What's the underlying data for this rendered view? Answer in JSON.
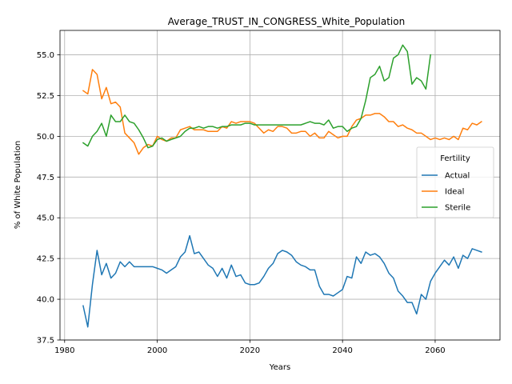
{
  "chart_data": {
    "type": "line",
    "title": "Average_TRUST_IN_CONGRESS_White_Population",
    "xlabel": "Years",
    "ylabel": "% of White Population",
    "xlim": [
      1979,
      2074
    ],
    "ylim": [
      37.5,
      56.5
    ],
    "xticks": [
      1980,
      2000,
      2020,
      2040,
      2060
    ],
    "yticks": [
      37.5,
      40.0,
      42.5,
      45.0,
      47.5,
      50.0,
      52.5,
      55.0
    ],
    "ytick_labels": [
      "37.5",
      "40.0",
      "42.5",
      "45.0",
      "47.5",
      "50.0",
      "52.5",
      "55.0"
    ],
    "grid": true,
    "legend": {
      "title": "Fertility",
      "placement": "center-right"
    },
    "series": [
      {
        "name": "Actual",
        "color": "#1f77b4",
        "x": [
          1984,
          1985,
          1986,
          1987,
          1988,
          1989,
          1990,
          1991,
          1992,
          1993,
          1994,
          1995,
          1996,
          1997,
          1998,
          1999,
          2000,
          2001,
          2002,
          2003,
          2004,
          2005,
          2006,
          2007,
          2008,
          2009,
          2010,
          2011,
          2012,
          2013,
          2014,
          2015,
          2016,
          2017,
          2018,
          2019,
          2020,
          2021,
          2022,
          2023,
          2024,
          2025,
          2026,
          2027,
          2028,
          2029,
          2030,
          2031,
          2032,
          2033,
          2034,
          2035,
          2036,
          2037,
          2038,
          2039,
          2040,
          2041,
          2042,
          2043,
          2044,
          2045,
          2046,
          2047,
          2048,
          2049,
          2050,
          2051,
          2052,
          2053,
          2054,
          2055,
          2056,
          2057,
          2058,
          2059,
          2060,
          2061,
          2062,
          2063,
          2064,
          2065,
          2066,
          2067,
          2068,
          2069,
          2070
        ],
        "values": [
          39.6,
          38.3,
          40.9,
          43.0,
          41.5,
          42.2,
          41.3,
          41.6,
          42.3,
          42.0,
          42.3,
          42.0,
          42.0,
          42.0,
          42.0,
          42.0,
          41.9,
          41.8,
          41.6,
          41.8,
          42.0,
          42.6,
          42.9,
          43.9,
          42.8,
          42.9,
          42.5,
          42.1,
          41.9,
          41.4,
          41.9,
          41.3,
          42.1,
          41.4,
          41.5,
          41.0,
          40.9,
          40.9,
          41.0,
          41.4,
          41.9,
          42.2,
          42.8,
          43.0,
          42.9,
          42.7,
          42.3,
          42.1,
          42.0,
          41.8,
          41.8,
          40.8,
          40.3,
          40.3,
          40.2,
          40.4,
          40.6,
          41.4,
          41.3,
          42.6,
          42.2,
          42.9,
          42.7,
          42.8,
          42.6,
          42.2,
          41.6,
          41.3,
          40.5,
          40.2,
          39.8,
          39.8,
          39.1,
          40.3,
          40.0,
          41.1,
          41.6,
          42.0,
          42.4,
          42.1,
          42.6,
          41.9,
          42.7,
          42.5,
          43.1,
          43.0,
          42.9
        ]
      },
      {
        "name": "Ideal",
        "color": "#ff7f0e",
        "x": [
          1984,
          1985,
          1986,
          1987,
          1988,
          1989,
          1990,
          1991,
          1992,
          1993,
          1994,
          1995,
          1996,
          1997,
          1998,
          1999,
          2000,
          2001,
          2002,
          2003,
          2004,
          2005,
          2006,
          2007,
          2008,
          2009,
          2010,
          2011,
          2012,
          2013,
          2014,
          2015,
          2016,
          2017,
          2018,
          2019,
          2020,
          2021,
          2022,
          2023,
          2024,
          2025,
          2026,
          2027,
          2028,
          2029,
          2030,
          2031,
          2032,
          2033,
          2034,
          2035,
          2036,
          2037,
          2038,
          2039,
          2040,
          2041,
          2042,
          2043,
          2044,
          2045,
          2046,
          2047,
          2048,
          2049,
          2050,
          2051,
          2052,
          2053,
          2054,
          2055,
          2056,
          2057,
          2058,
          2059,
          2060,
          2061,
          2062,
          2063,
          2064,
          2065,
          2066,
          2067,
          2068,
          2069,
          2070
        ],
        "values": [
          52.8,
          52.6,
          54.1,
          53.8,
          52.3,
          53.0,
          52.0,
          52.1,
          51.8,
          50.2,
          49.9,
          49.6,
          48.9,
          49.3,
          49.5,
          49.4,
          50.0,
          49.8,
          49.7,
          49.9,
          49.9,
          50.4,
          50.5,
          50.6,
          50.4,
          50.4,
          50.4,
          50.3,
          50.3,
          50.3,
          50.6,
          50.5,
          50.9,
          50.8,
          50.9,
          50.9,
          50.9,
          50.8,
          50.5,
          50.2,
          50.4,
          50.3,
          50.6,
          50.6,
          50.5,
          50.2,
          50.2,
          50.3,
          50.3,
          50.0,
          50.2,
          49.9,
          49.9,
          50.3,
          50.1,
          49.9,
          50.0,
          50.0,
          50.6,
          51.0,
          51.1,
          51.3,
          51.3,
          51.4,
          51.4,
          51.2,
          50.9,
          50.9,
          50.6,
          50.7,
          50.5,
          50.4,
          50.2,
          50.2,
          50.0,
          49.8,
          49.9,
          49.8,
          49.9,
          49.8,
          50.0,
          49.8,
          50.5,
          50.4,
          50.8,
          50.7,
          50.9
        ]
      },
      {
        "name": "Sterile",
        "color": "#2ca02c",
        "x": [
          1984,
          1985,
          1986,
          1987,
          1988,
          1989,
          1990,
          1991,
          1992,
          1993,
          1994,
          1995,
          1996,
          1997,
          1998,
          1999,
          2000,
          2001,
          2002,
          2003,
          2004,
          2005,
          2006,
          2007,
          2008,
          2009,
          2010,
          2011,
          2012,
          2013,
          2014,
          2015,
          2016,
          2017,
          2018,
          2019,
          2020,
          2021,
          2022,
          2023,
          2024,
          2025,
          2026,
          2027,
          2028,
          2029,
          2030,
          2031,
          2032,
          2033,
          2034,
          2035,
          2036,
          2037,
          2038,
          2039,
          2040,
          2041,
          2042,
          2043,
          2044,
          2045,
          2046,
          2047,
          2048,
          2049,
          2050,
          2051,
          2052,
          2053,
          2054,
          2055,
          2056,
          2057,
          2058,
          2059
        ],
        "values": [
          49.6,
          49.4,
          50.0,
          50.3,
          50.8,
          50.0,
          51.3,
          50.9,
          50.9,
          51.3,
          50.9,
          50.8,
          50.4,
          49.9,
          49.3,
          49.4,
          49.8,
          49.9,
          49.7,
          49.8,
          49.9,
          50.0,
          50.3,
          50.5,
          50.5,
          50.6,
          50.5,
          50.6,
          50.6,
          50.5,
          50.6,
          50.6,
          50.7,
          50.7,
          50.7,
          50.8,
          50.8,
          50.7,
          50.7,
          50.7,
          50.7,
          50.7,
          50.7,
          50.7,
          50.7,
          50.7,
          50.7,
          50.7,
          50.8,
          50.9,
          50.8,
          50.8,
          50.7,
          51.0,
          50.5,
          50.6,
          50.6,
          50.3,
          50.5,
          50.6,
          51.1,
          52.2,
          53.6,
          53.8,
          54.3,
          53.4,
          53.6,
          54.8,
          55.0,
          55.6,
          55.2,
          53.2,
          53.6,
          53.4,
          52.9,
          55.0
        ]
      }
    ]
  }
}
